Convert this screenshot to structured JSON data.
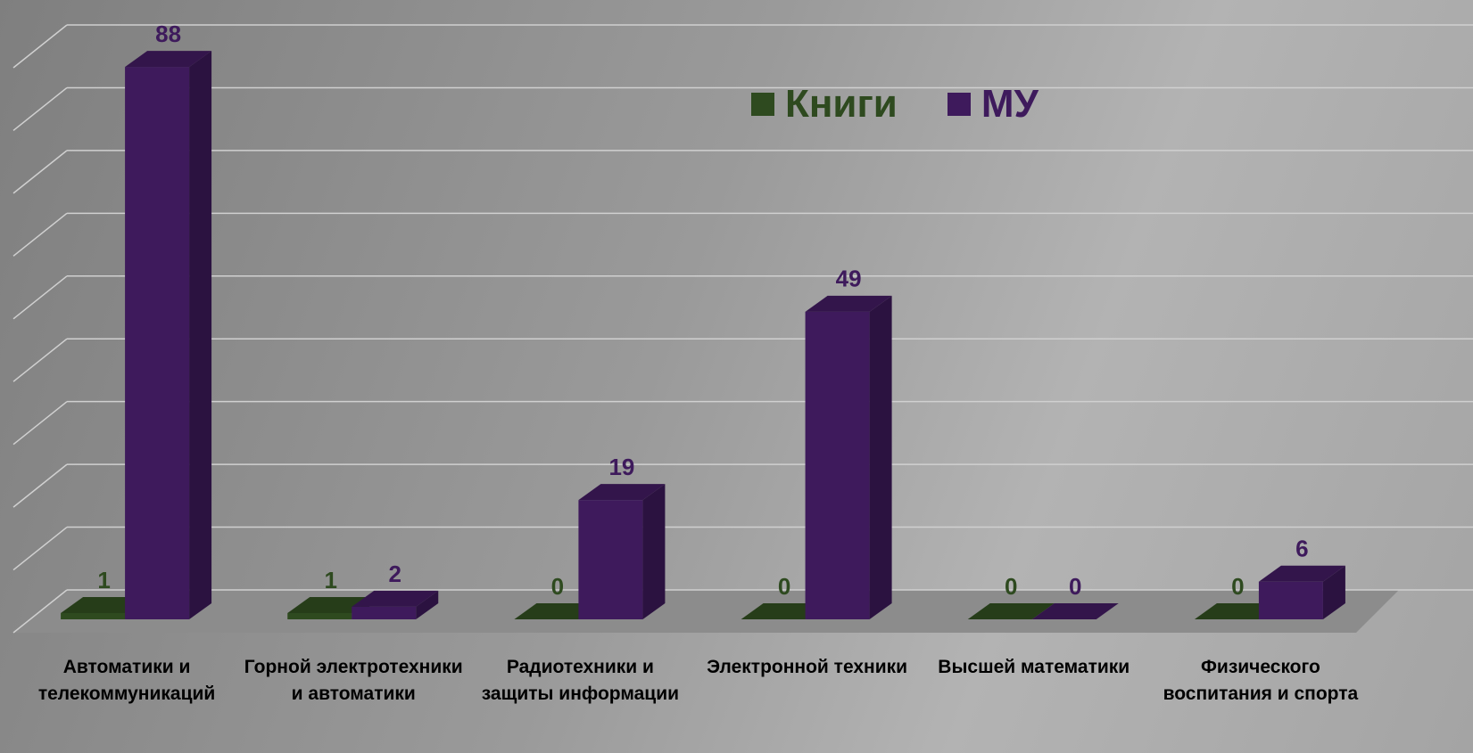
{
  "chart_data": {
    "type": "bar3d",
    "categories": [
      "Автоматики и телекоммуникаций",
      "Горной электротехники и автоматики",
      "Радиотехники и защиты информации",
      "Электронной техники",
      "Высшей математики",
      "Физического воспитания и спорта"
    ],
    "series": [
      {
        "name": "Книги",
        "color": "#2e4a1f",
        "values": [
          1,
          1,
          0,
          0,
          0,
          0
        ]
      },
      {
        "name": "МУ",
        "color": "#3e1a5c",
        "values": [
          88,
          2,
          19,
          49,
          0,
          6
        ]
      }
    ],
    "ylim": [
      0,
      90
    ],
    "yticks": [
      0,
      10,
      20,
      30,
      40,
      50,
      60,
      70,
      80,
      90
    ],
    "grid": true,
    "legend": "top"
  }
}
